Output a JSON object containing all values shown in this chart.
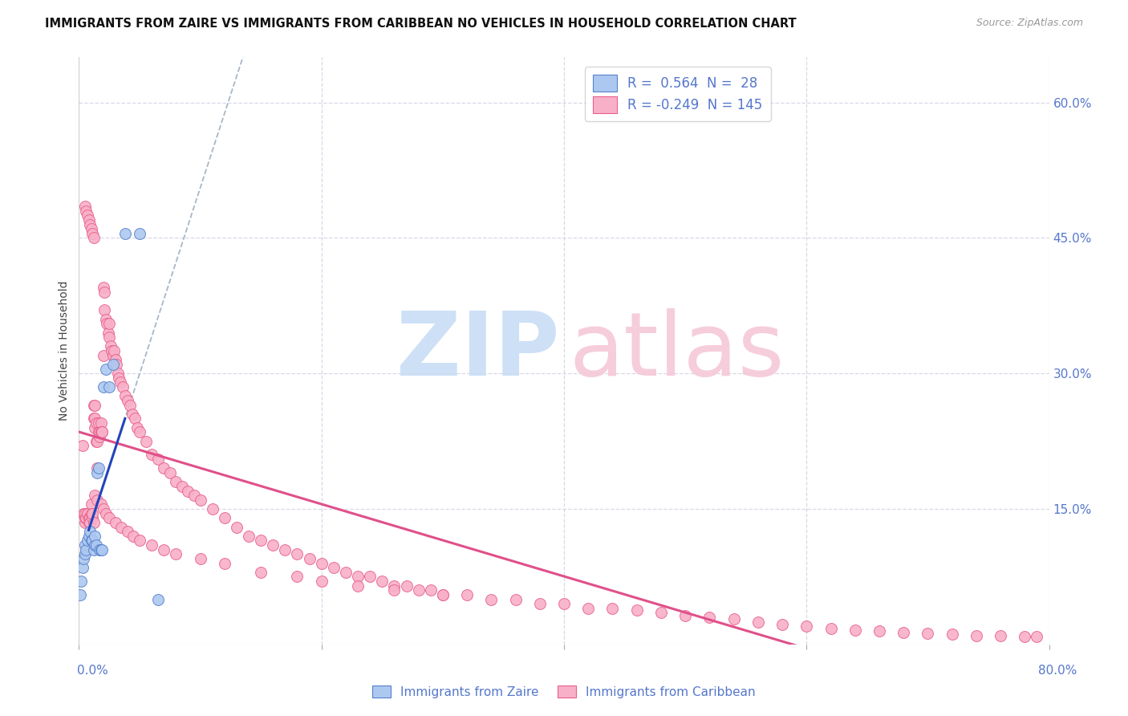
{
  "title": "IMMIGRANTS FROM ZAIRE VS IMMIGRANTS FROM CARIBBEAN NO VEHICLES IN HOUSEHOLD CORRELATION CHART",
  "source": "Source: ZipAtlas.com",
  "ylabel": "No Vehicles in Household",
  "right_yticks": [
    "60.0%",
    "45.0%",
    "30.0%",
    "15.0%"
  ],
  "right_ytick_vals": [
    0.6,
    0.45,
    0.3,
    0.15
  ],
  "xlim": [
    0.0,
    0.8
  ],
  "ylim": [
    0.0,
    0.65
  ],
  "legend_r_zaire": " 0.564",
  "legend_n_zaire": " 28",
  "legend_r_caribbean": "-0.249",
  "legend_n_caribbean": "145",
  "zaire_color": "#adc8f0",
  "zaire_edge_color": "#5580cc",
  "caribbean_color": "#f8b0c8",
  "caribbean_edge_color": "#e8608a",
  "trendline_zaire_color": "#2244bb",
  "trendline_caribbean_color": "#e0508a",
  "trendline_dashed_color": "#99aabb",
  "background_color": "#ffffff",
  "grid_color": "#d8d8e8",
  "right_axis_color": "#5577cc",
  "title_fontsize": 10.5,
  "watermark_zip_color": "#c8ddf5",
  "watermark_atlas_color": "#f5c8d8",
  "zaire_x": [
    0.001,
    0.002,
    0.003,
    0.004,
    0.005,
    0.005,
    0.006,
    0.007,
    0.008,
    0.009,
    0.01,
    0.011,
    0.012,
    0.013,
    0.013,
    0.014,
    0.015,
    0.016,
    0.017,
    0.018,
    0.019,
    0.02,
    0.022,
    0.025,
    0.028,
    0.038,
    0.05,
    0.065
  ],
  "zaire_y": [
    0.055,
    0.07,
    0.085,
    0.095,
    0.1,
    0.11,
    0.105,
    0.115,
    0.12,
    0.125,
    0.115,
    0.115,
    0.105,
    0.11,
    0.12,
    0.11,
    0.19,
    0.195,
    0.105,
    0.105,
    0.105,
    0.285,
    0.305,
    0.285,
    0.31,
    0.455,
    0.455,
    0.05
  ],
  "carib_x": [
    0.003,
    0.004,
    0.005,
    0.005,
    0.005,
    0.006,
    0.007,
    0.007,
    0.008,
    0.008,
    0.009,
    0.009,
    0.01,
    0.01,
    0.011,
    0.011,
    0.012,
    0.012,
    0.012,
    0.013,
    0.013,
    0.013,
    0.014,
    0.014,
    0.015,
    0.015,
    0.016,
    0.016,
    0.017,
    0.017,
    0.018,
    0.018,
    0.019,
    0.019,
    0.02,
    0.02,
    0.021,
    0.021,
    0.022,
    0.023,
    0.024,
    0.025,
    0.025,
    0.026,
    0.027,
    0.028,
    0.029,
    0.03,
    0.031,
    0.032,
    0.033,
    0.034,
    0.036,
    0.038,
    0.04,
    0.042,
    0.044,
    0.046,
    0.048,
    0.05,
    0.055,
    0.06,
    0.065,
    0.07,
    0.075,
    0.08,
    0.085,
    0.09,
    0.095,
    0.1,
    0.11,
    0.12,
    0.13,
    0.14,
    0.15,
    0.16,
    0.17,
    0.18,
    0.19,
    0.2,
    0.21,
    0.22,
    0.23,
    0.24,
    0.25,
    0.26,
    0.27,
    0.28,
    0.29,
    0.3,
    0.32,
    0.34,
    0.36,
    0.38,
    0.4,
    0.42,
    0.44,
    0.46,
    0.48,
    0.5,
    0.52,
    0.54,
    0.56,
    0.58,
    0.6,
    0.62,
    0.64,
    0.66,
    0.68,
    0.7,
    0.72,
    0.74,
    0.76,
    0.78,
    0.79,
    0.005,
    0.006,
    0.007,
    0.008,
    0.009,
    0.01,
    0.011,
    0.012,
    0.013,
    0.015,
    0.018,
    0.02,
    0.022,
    0.025,
    0.03,
    0.035,
    0.04,
    0.045,
    0.05,
    0.06,
    0.07,
    0.08,
    0.1,
    0.12,
    0.15,
    0.18,
    0.2,
    0.23,
    0.26,
    0.3
  ],
  "carib_y": [
    0.22,
    0.145,
    0.135,
    0.14,
    0.145,
    0.14,
    0.145,
    0.145,
    0.14,
    0.135,
    0.14,
    0.135,
    0.155,
    0.145,
    0.14,
    0.145,
    0.135,
    0.265,
    0.25,
    0.265,
    0.25,
    0.24,
    0.225,
    0.245,
    0.195,
    0.225,
    0.245,
    0.235,
    0.23,
    0.235,
    0.245,
    0.235,
    0.235,
    0.235,
    0.32,
    0.395,
    0.39,
    0.37,
    0.36,
    0.355,
    0.345,
    0.355,
    0.34,
    0.33,
    0.325,
    0.32,
    0.325,
    0.315,
    0.31,
    0.3,
    0.295,
    0.29,
    0.285,
    0.275,
    0.27,
    0.265,
    0.255,
    0.25,
    0.24,
    0.235,
    0.225,
    0.21,
    0.205,
    0.195,
    0.19,
    0.18,
    0.175,
    0.17,
    0.165,
    0.16,
    0.15,
    0.14,
    0.13,
    0.12,
    0.115,
    0.11,
    0.105,
    0.1,
    0.095,
    0.09,
    0.085,
    0.08,
    0.075,
    0.075,
    0.07,
    0.065,
    0.065,
    0.06,
    0.06,
    0.055,
    0.055,
    0.05,
    0.05,
    0.045,
    0.045,
    0.04,
    0.04,
    0.038,
    0.035,
    0.032,
    0.03,
    0.028,
    0.025,
    0.022,
    0.02,
    0.018,
    0.016,
    0.015,
    0.013,
    0.012,
    0.011,
    0.01,
    0.01,
    0.009,
    0.009,
    0.485,
    0.48,
    0.475,
    0.47,
    0.465,
    0.46,
    0.455,
    0.45,
    0.165,
    0.16,
    0.155,
    0.15,
    0.145,
    0.14,
    0.135,
    0.13,
    0.125,
    0.12,
    0.115,
    0.11,
    0.105,
    0.1,
    0.095,
    0.09,
    0.08,
    0.075,
    0.07,
    0.065,
    0.06,
    0.055
  ]
}
